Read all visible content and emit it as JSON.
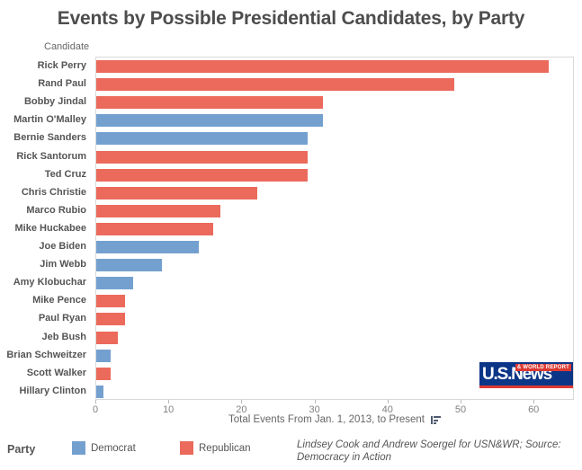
{
  "title": "Events by Possible Presidential Candidates, by Party",
  "chart_data": {
    "type": "bar",
    "orientation": "horizontal",
    "title": "Events by Possible Presidential Candidates, by Party",
    "category_axis_label": "Candidate",
    "value_axis_label": "Total Events From Jan. 1, 2013, to Present",
    "x_ticks": [
      0,
      10,
      20,
      30,
      40,
      50,
      60
    ],
    "xlim": [
      0,
      65.5
    ],
    "grid": false,
    "legend_position": "bottom-left",
    "bars": [
      {
        "candidate": "Rick Perry",
        "party": "Republican",
        "value": 62
      },
      {
        "candidate": "Rand Paul",
        "party": "Republican",
        "value": 49
      },
      {
        "candidate": "Bobby Jindal",
        "party": "Republican",
        "value": 31
      },
      {
        "candidate": "Martin O'Malley",
        "party": "Democrat",
        "value": 31
      },
      {
        "candidate": "Bernie Sanders",
        "party": "Democrat",
        "value": 29
      },
      {
        "candidate": "Rick Santorum",
        "party": "Republican",
        "value": 29
      },
      {
        "candidate": "Ted Cruz",
        "party": "Republican",
        "value": 29
      },
      {
        "candidate": "Chris Christie",
        "party": "Republican",
        "value": 22
      },
      {
        "candidate": "Marco Rubio",
        "party": "Republican",
        "value": 17
      },
      {
        "candidate": "Mike Huckabee",
        "party": "Republican",
        "value": 16
      },
      {
        "candidate": "Joe Biden",
        "party": "Democrat",
        "value": 14
      },
      {
        "candidate": "Jim Webb",
        "party": "Democrat",
        "value": 9
      },
      {
        "candidate": "Amy Klobuchar",
        "party": "Democrat",
        "value": 5
      },
      {
        "candidate": "Mike Pence",
        "party": "Republican",
        "value": 4
      },
      {
        "candidate": "Paul Ryan",
        "party": "Republican",
        "value": 4
      },
      {
        "candidate": "Jeb Bush",
        "party": "Republican",
        "value": 3
      },
      {
        "candidate": "Brian Schweitzer",
        "party": "Democrat",
        "value": 2
      },
      {
        "candidate": "Scott Walker",
        "party": "Republican",
        "value": 2
      },
      {
        "candidate": "Hillary Clinton",
        "party": "Democrat",
        "value": 1
      }
    ]
  },
  "legend": {
    "title": "Party",
    "entries": [
      {
        "label": "Democrat",
        "color": "#74a0cf"
      },
      {
        "label": "Republican",
        "color": "#eb6a5c"
      }
    ]
  },
  "colors": {
    "democrat": "#74a0cf",
    "republican": "#eb6a5c",
    "title_text": "#4d4d4d",
    "logo_blue": "#0b3587",
    "logo_red": "#dc3a32"
  },
  "icons": {
    "axis_sort": "sort-descending-icon"
  },
  "attribution": {
    "line1": "Lindsey Cook and Andrew Soergel for USN&WR; Source:",
    "line2": "Democracy in Action"
  },
  "logo": {
    "main": "U.S.News",
    "sub": "& WORLD REPORT"
  }
}
